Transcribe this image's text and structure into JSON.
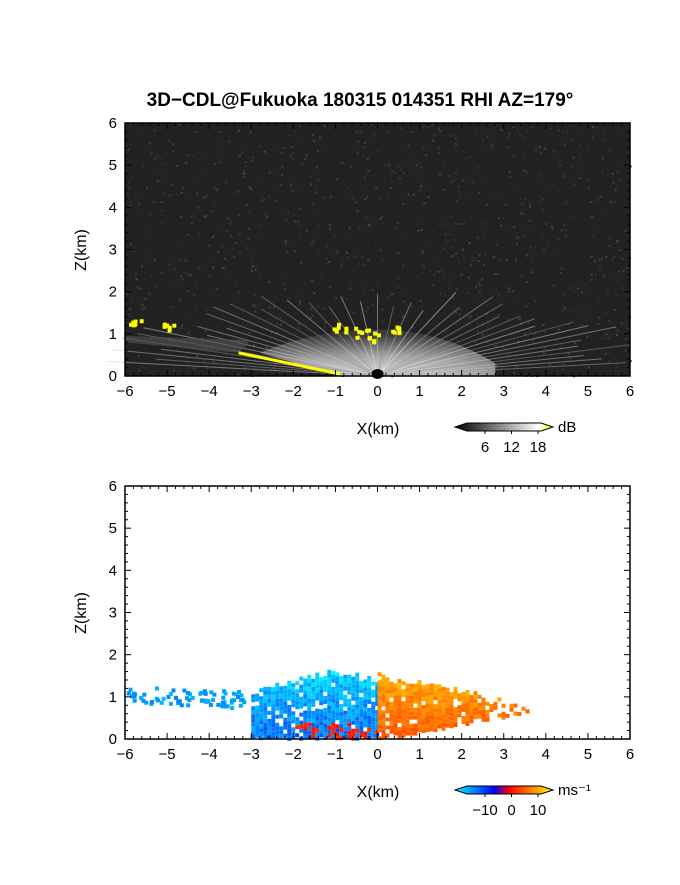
{
  "title": "3D−CDL@Fukuoka 180315 014351 RHI AZ=179°",
  "chart_data": [
    {
      "type": "heatmap",
      "name": "backscatter",
      "xlabel": "X(km)",
      "ylabel": "Z(km)",
      "xlim": [
        -6,
        6
      ],
      "ylim": [
        0,
        6
      ],
      "xticks": [
        "−6",
        "−5",
        "−4",
        "−3",
        "−2",
        "−1",
        "0",
        "1",
        "2",
        "3",
        "4",
        "5",
        "6"
      ],
      "yticks": [
        "0",
        "1",
        "2",
        "3",
        "4",
        "5",
        "6"
      ],
      "background": "#222222",
      "colorbar": {
        "unit": "dB",
        "ticks": [
          "6",
          "12",
          "18"
        ],
        "colors": [
          "#000000",
          "#ffffff",
          "#ffff00"
        ]
      },
      "fan": {
        "center_x": 0,
        "top_z": 1.1,
        "left_x": -2.8,
        "right_x": 2.8
      },
      "yellow_patches": [
        {
          "x": -5.8,
          "z": 1.3
        },
        {
          "x": -5.0,
          "z": 1.15
        },
        {
          "x": -0.9,
          "z": 1.15
        },
        {
          "x": -0.1,
          "z": 0.95
        },
        {
          "x": 0.4,
          "z": 1.15
        },
        {
          "x": -0.4,
          "z": 1.05
        }
      ],
      "ground_clutter_line": {
        "x": [
          -3.3,
          -0.9
        ],
        "z": [
          0.55,
          0.05
        ]
      }
    },
    {
      "type": "heatmap",
      "name": "doppler_velocity",
      "xlabel": "X(km)",
      "ylabel": "Z(km)",
      "xlim": [
        -6,
        6
      ],
      "ylim": [
        0,
        6
      ],
      "xticks": [
        "−6",
        "−5",
        "−4",
        "−3",
        "−2",
        "−1",
        "0",
        "1",
        "2",
        "3",
        "4",
        "5",
        "6"
      ],
      "yticks": [
        "0",
        "1",
        "2",
        "3",
        "4",
        "5",
        "6"
      ],
      "colorbar": {
        "unit": "ms⁻¹",
        "ticks": [
          "−10",
          "0",
          "10"
        ],
        "colors": [
          "#00ffff",
          "#0000ff",
          "#ff0000",
          "#ffff00"
        ]
      },
      "negative_region": {
        "x": [
          -3.0,
          0
        ],
        "z_top": 1.7,
        "value": -8
      },
      "positive_region": {
        "x": [
          0,
          3.6
        ],
        "z_top": 1.6,
        "value": 6
      },
      "sparse_cyan": {
        "x": [
          -6,
          -3.2
        ],
        "z": [
          0.9,
          1.4
        ],
        "value": -12
      }
    }
  ]
}
